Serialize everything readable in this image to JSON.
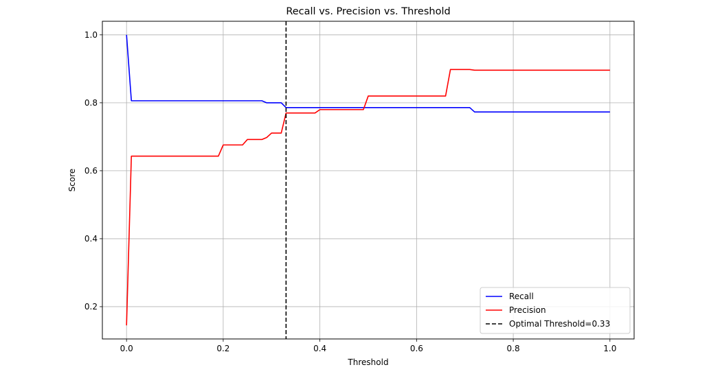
{
  "chart_data": {
    "type": "line",
    "title": "Recall vs. Precision vs. Threshold",
    "xlabel": "Threshold",
    "ylabel": "Score",
    "xlim": [
      -0.05,
      1.05
    ],
    "ylim": [
      0.105,
      1.04
    ],
    "xticks": [
      0.0,
      0.2,
      0.4,
      0.6,
      0.8,
      1.0
    ],
    "xtick_labels": [
      "0.0",
      "0.2",
      "0.4",
      "0.6",
      "0.8",
      "1.0"
    ],
    "yticks": [
      0.2,
      0.4,
      0.6,
      0.8,
      1.0
    ],
    "ytick_labels": [
      "0.2",
      "0.4",
      "0.6",
      "0.8",
      "1.0"
    ],
    "grid": true,
    "legend_position": "lower-right",
    "series": [
      {
        "name": "Recall",
        "color": "#0000ff",
        "style": "solid",
        "x": [
          0.0,
          0.01,
          0.28,
          0.29,
          0.32,
          0.33,
          0.71,
          0.72,
          1.0
        ],
        "y": [
          1.0,
          0.806,
          0.806,
          0.8,
          0.8,
          0.786,
          0.786,
          0.773,
          0.773
        ]
      },
      {
        "name": "Precision",
        "color": "#ff0000",
        "style": "solid",
        "x": [
          0.0,
          0.01,
          0.19,
          0.2,
          0.24,
          0.25,
          0.28,
          0.29,
          0.3,
          0.32,
          0.33,
          0.39,
          0.4,
          0.49,
          0.5,
          0.66,
          0.67,
          0.71,
          0.72,
          1.0
        ],
        "y": [
          0.145,
          0.643,
          0.643,
          0.676,
          0.676,
          0.692,
          0.692,
          0.698,
          0.711,
          0.711,
          0.77,
          0.77,
          0.78,
          0.78,
          0.82,
          0.82,
          0.898,
          0.898,
          0.896,
          0.896
        ]
      }
    ],
    "vlines": [
      {
        "name": "Optimal Threshold=0.33",
        "x": 0.33,
        "color": "#000000",
        "style": "dashed"
      }
    ]
  }
}
